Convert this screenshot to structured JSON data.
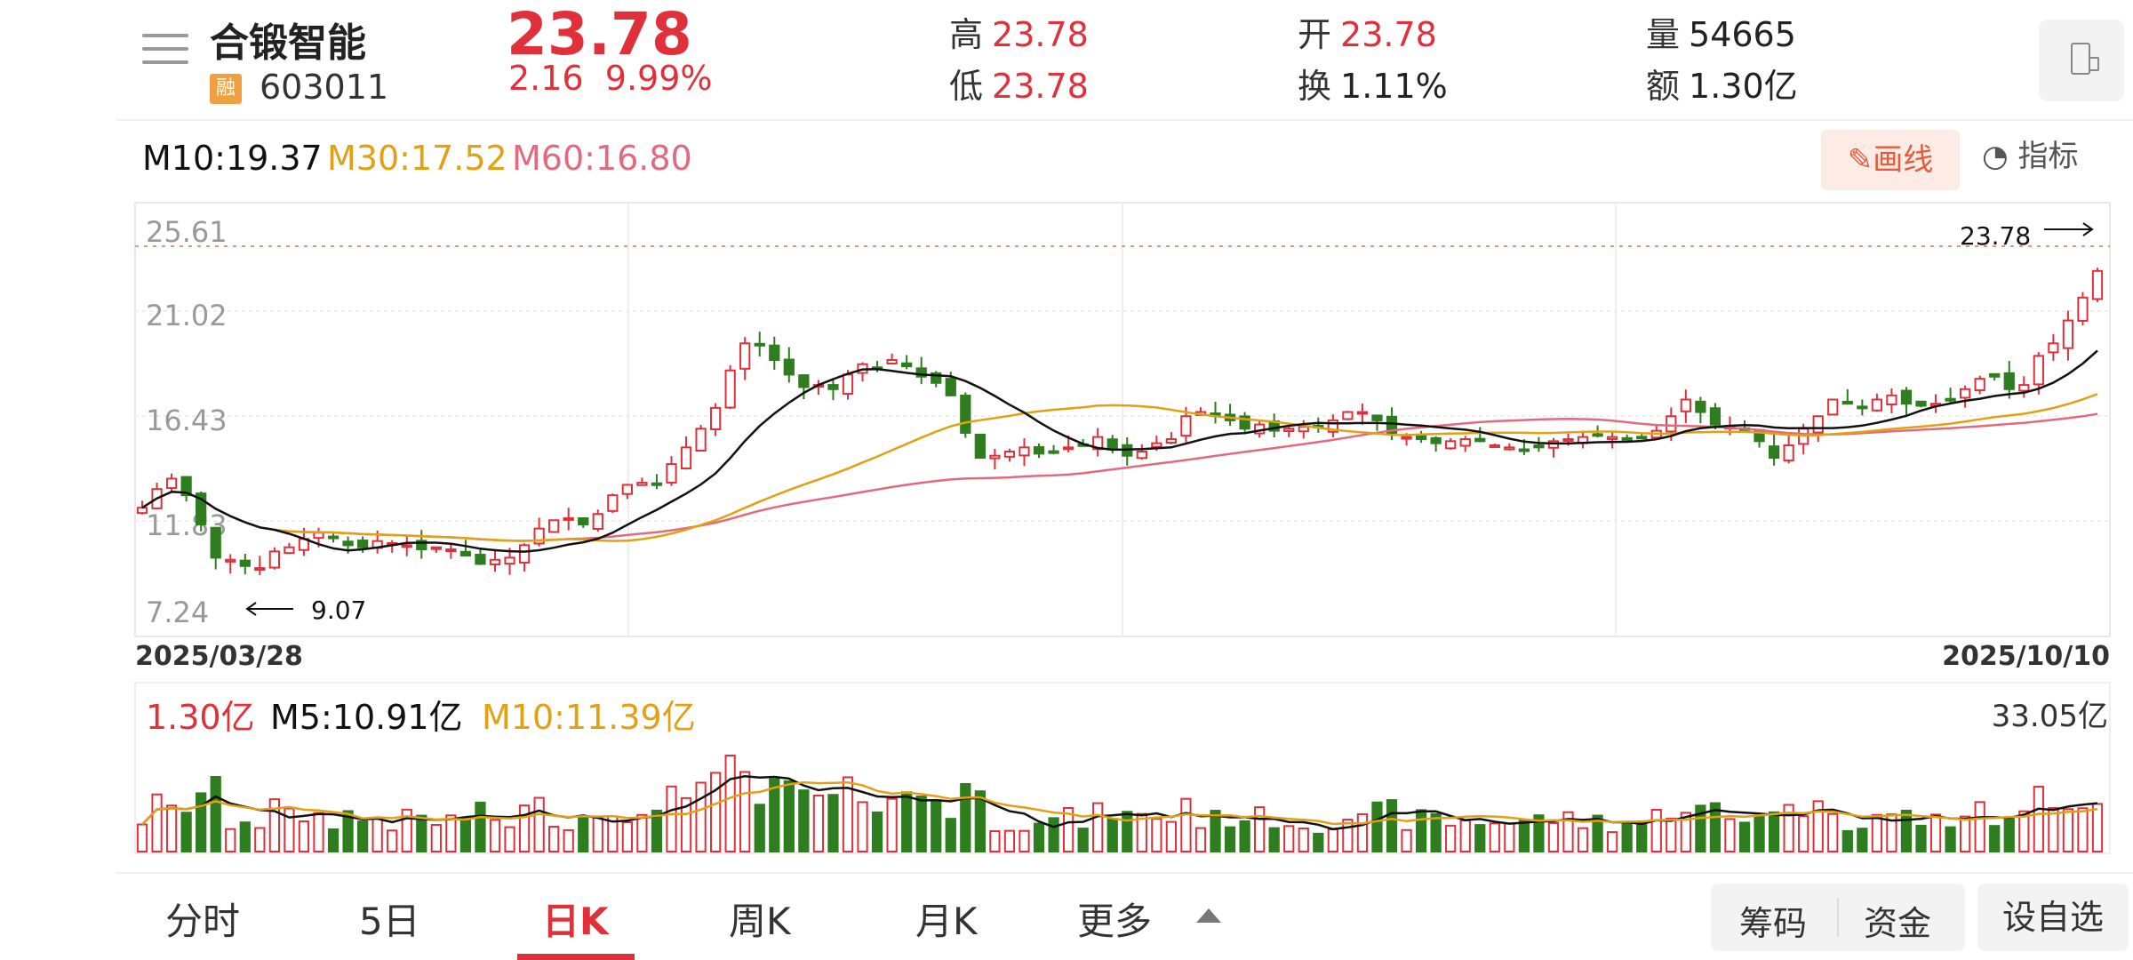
{
  "header": {
    "stock_name": "合锻智能",
    "margin_badge": "融",
    "stock_code": "603011",
    "price": "23.78",
    "change": "2.16",
    "change_pct": "9.99%",
    "high_label": "高",
    "high": "23.78",
    "low_label": "低",
    "low": "23.78",
    "open_label": "开",
    "open": "23.78",
    "turnover_label": "换",
    "turnover": "1.11%",
    "volume_label": "量",
    "volume": "54665",
    "amount_label": "额",
    "amount": "1.30亿"
  },
  "ma_legend": {
    "m10": "M10:19.37",
    "m30": "M30:17.52",
    "m60": "M60:16.80"
  },
  "tools": {
    "draw_label": "画线",
    "indicator_label": "指标"
  },
  "chart": {
    "y_ticks": [
      "25.61",
      "21.02",
      "16.43",
      "11.83",
      "7.24"
    ],
    "x_start": "2025/03/28",
    "x_end": "2025/10/10",
    "max_marker": "23.78",
    "min_marker": "9.07"
  },
  "volume": {
    "current": "1.30亿",
    "m5": "M5:10.91亿",
    "m10": "M10:11.39亿",
    "max": "33.05亿"
  },
  "tabs": {
    "fenshi": "分时",
    "five_day": "5日",
    "day_k": "日K",
    "week_k": "周K",
    "month_k": "月K",
    "more": "更多"
  },
  "actions": {
    "chips": "筹码",
    "funds": "资金",
    "watchlist": "设自选"
  },
  "colors": {
    "up": "#e0303a",
    "down": "#2e7d1e",
    "ma10": "#111111",
    "ma30": "#e3a012",
    "ma60": "#e36a7e"
  },
  "chart_data": {
    "type": "candlestick",
    "x_range": [
      "2025/03/28",
      "2025/10/10"
    ],
    "ylim": [
      7.24,
      25.61
    ],
    "y_ticks": [
      25.61,
      21.02,
      16.43,
      11.83,
      7.24
    ],
    "last_close": 23.78,
    "period_low": 9.07,
    "ma_lines": [
      {
        "name": "M10",
        "last": 19.37
      },
      {
        "name": "M30",
        "last": 17.52
      },
      {
        "name": "M60",
        "last": 16.8
      }
    ],
    "volume_max": "33.05亿",
    "closes": [
      12.4,
      13.3,
      13.8,
      13.0,
      11.6,
      10.0,
      9.9,
      9.6,
      9.5,
      10.3,
      10.5,
      10.9,
      11.2,
      11.0,
      10.6,
      10.5,
      10.8,
      10.7,
      10.6,
      10.4,
      10.5,
      10.4,
      10.1,
      9.7,
      9.9,
      10.0,
      10.6,
      11.4,
      11.8,
      11.9,
      11.6,
      12.1,
      13.0,
      13.5,
      13.6,
      13.5,
      14.5,
      15.3,
      16.2,
      17.2,
      19.0,
      20.3,
      20.2,
      19.5,
      18.8,
      18.2,
      18.3,
      18.1,
      18.8,
      19.3,
      19.1,
      19.5,
      19.2,
      18.7,
      18.4,
      17.8,
      16.0,
      14.8,
      14.9,
      15.1,
      15.3,
      15.0,
      15.1,
      15.3,
      15.4,
      15.8,
      15.2,
      14.9,
      15.1,
      15.5,
      15.7,
      16.8,
      17.0,
      16.9,
      16.6,
      16.2,
      16.4,
      16.1,
      16.2,
      16.3,
      16.3,
      16.6,
      17.0,
      17.0,
      16.6,
      16.0,
      15.8,
      15.7,
      15.5,
      15.6,
      15.7,
      15.6,
      15.4,
      15.3,
      15.2,
      15.3,
      15.6,
      15.7,
      15.8,
      15.9,
      15.8,
      15.7,
      15.8,
      16.1,
      16.8,
      17.6,
      17.0,
      16.4,
      16.3,
      16.2,
      15.6,
      14.8,
      15.4,
      16.2,
      16.8,
      17.6,
      17.4,
      17.2,
      17.6,
      17.8,
      17.4,
      17.3,
      17.4,
      17.6,
      18.1,
      18.6,
      18.7,
      18.1,
      18.3,
      19.7,
      20.3,
      21.4,
      22.5,
      23.78
    ]
  }
}
